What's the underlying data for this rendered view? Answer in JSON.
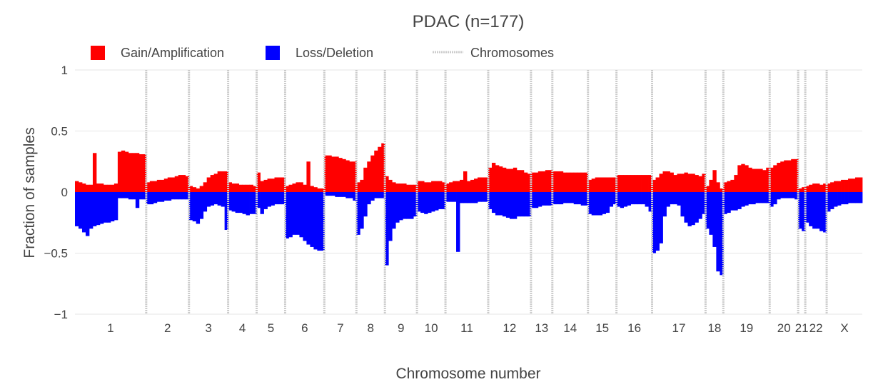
{
  "chart_data": {
    "type": "bar",
    "title": "PDAC (n=177)",
    "xlabel": "Chromosome number",
    "ylabel": "Fraction of samples",
    "ylim": [
      -1,
      1
    ],
    "y_ticks": [
      {
        "value": 1,
        "label": "1"
      },
      {
        "value": 0.5,
        "label": "0.5"
      },
      {
        "value": 0,
        "label": "0"
      },
      {
        "value": -0.5,
        "label": "−0.5"
      },
      {
        "value": -1,
        "label": "−1"
      }
    ],
    "grid": true,
    "legend": "top",
    "colors": {
      "gain": "#ff0000",
      "loss": "#0000ff",
      "chromosomes": "#cccccc"
    },
    "legend_entries": [
      {
        "key": "gain",
        "label": "Gain/Amplification"
      },
      {
        "key": "loss",
        "label": "Loss/Deletion"
      },
      {
        "key": "chromosomes",
        "label": "Chromosomes"
      }
    ],
    "chromosomes": [
      {
        "label": "1",
        "gain": [
          0.09,
          0.08,
          0.07,
          0.06,
          0.06,
          0.32,
          0.07,
          0.07,
          0.06,
          0.06,
          0.06,
          0.07,
          0.33,
          0.34,
          0.33,
          0.32,
          0.32,
          0.32,
          0.31,
          0.31
        ],
        "loss": [
          -0.28,
          -0.3,
          -0.33,
          -0.36,
          -0.3,
          -0.28,
          -0.27,
          -0.26,
          -0.25,
          -0.25,
          -0.24,
          -0.23,
          -0.05,
          -0.05,
          -0.05,
          -0.06,
          -0.06,
          -0.13,
          -0.06,
          -0.06
        ]
      },
      {
        "label": "2",
        "gain": [
          0.08,
          0.09,
          0.09,
          0.1,
          0.1,
          0.11,
          0.12,
          0.12,
          0.13,
          0.14,
          0.14,
          0.13
        ],
        "loss": [
          -0.1,
          -0.1,
          -0.09,
          -0.08,
          -0.08,
          -0.07,
          -0.07,
          -0.06,
          -0.06,
          -0.06,
          -0.06,
          -0.06
        ]
      },
      {
        "label": "3",
        "gain": [
          0.05,
          0.04,
          0.03,
          0.05,
          0.08,
          0.12,
          0.14,
          0.15,
          0.17,
          0.17,
          0.17
        ],
        "loss": [
          -0.23,
          -0.24,
          -0.26,
          -0.22,
          -0.16,
          -0.12,
          -0.11,
          -0.1,
          -0.11,
          -0.12,
          -0.31
        ]
      },
      {
        "label": "4",
        "gain": [
          0.08,
          0.07,
          0.07,
          0.06,
          0.06,
          0.06,
          0.06,
          0.05
        ],
        "loss": [
          -0.15,
          -0.16,
          -0.17,
          -0.17,
          -0.18,
          -0.19,
          -0.18,
          -0.18
        ]
      },
      {
        "label": "5",
        "gain": [
          0.16,
          0.09,
          0.1,
          0.11,
          0.11,
          0.12,
          0.12,
          0.12
        ],
        "loss": [
          -0.13,
          -0.18,
          -0.14,
          -0.12,
          -0.11,
          -0.1,
          -0.1,
          -0.1
        ]
      },
      {
        "label": "6",
        "gain": [
          0.05,
          0.06,
          0.07,
          0.08,
          0.08,
          0.06,
          0.25,
          0.05,
          0.04,
          0.03,
          0.03
        ],
        "loss": [
          -0.38,
          -0.37,
          -0.35,
          -0.35,
          -0.37,
          -0.4,
          -0.43,
          -0.45,
          -0.47,
          -0.48,
          -0.48
        ]
      },
      {
        "label": "7",
        "gain": [
          0.3,
          0.3,
          0.29,
          0.29,
          0.28,
          0.27,
          0.26,
          0.25,
          0.25
        ],
        "loss": [
          -0.03,
          -0.03,
          -0.03,
          -0.04,
          -0.04,
          -0.04,
          -0.05,
          -0.05,
          -0.07
        ]
      },
      {
        "label": "8",
        "gain": [
          0.08,
          0.1,
          0.2,
          0.25,
          0.3,
          0.34,
          0.37,
          0.4
        ],
        "loss": [
          -0.35,
          -0.3,
          -0.2,
          -0.1,
          -0.07,
          -0.05,
          -0.05,
          -0.05
        ]
      },
      {
        "label": "9",
        "gain": [
          0.13,
          0.1,
          0.08,
          0.07,
          0.07,
          0.07,
          0.06,
          0.06,
          0.06
        ],
        "loss": [
          -0.6,
          -0.4,
          -0.3,
          -0.25,
          -0.23,
          -0.22,
          -0.22,
          -0.22,
          -0.2
        ]
      },
      {
        "label": "10",
        "gain": [
          0.09,
          0.09,
          0.08,
          0.08,
          0.09,
          0.09,
          0.09,
          0.08
        ],
        "loss": [
          -0.16,
          -0.17,
          -0.18,
          -0.17,
          -0.16,
          -0.15,
          -0.14,
          -0.14
        ]
      },
      {
        "label": "11",
        "gain": [
          0.07,
          0.08,
          0.09,
          0.09,
          0.1,
          0.17,
          0.09,
          0.1,
          0.11,
          0.12,
          0.12,
          0.12
        ],
        "loss": [
          -0.08,
          -0.08,
          -0.08,
          -0.49,
          -0.09,
          -0.09,
          -0.09,
          -0.09,
          -0.09,
          -0.08,
          -0.08,
          -0.08
        ]
      },
      {
        "label": "12",
        "gain": [
          0.2,
          0.24,
          0.22,
          0.21,
          0.2,
          0.19,
          0.19,
          0.2,
          0.18,
          0.18,
          0.16,
          0.15
        ],
        "loss": [
          -0.14,
          -0.17,
          -0.19,
          -0.19,
          -0.2,
          -0.21,
          -0.22,
          -0.22,
          -0.2,
          -0.2,
          -0.2,
          -0.2
        ]
      },
      {
        "label": "13",
        "gain": [
          0.16,
          0.16,
          0.17,
          0.17,
          0.18,
          0.18
        ],
        "loss": [
          -0.13,
          -0.13,
          -0.12,
          -0.11,
          -0.11,
          -0.11
        ]
      },
      {
        "label": "14",
        "gain": [
          0.17,
          0.17,
          0.17,
          0.16,
          0.16,
          0.16,
          0.16,
          0.16,
          0.16,
          0.16
        ],
        "loss": [
          -0.1,
          -0.1,
          -0.1,
          -0.09,
          -0.09,
          -0.09,
          -0.1,
          -0.1,
          -0.11,
          -0.11
        ]
      },
      {
        "label": "15",
        "gain": [
          0.1,
          0.11,
          0.12,
          0.12,
          0.12,
          0.12,
          0.12,
          0.12
        ],
        "loss": [
          -0.18,
          -0.19,
          -0.19,
          -0.19,
          -0.18,
          -0.17,
          -0.12,
          -0.1
        ]
      },
      {
        "label": "16",
        "gain": [
          0.14,
          0.14,
          0.14,
          0.14,
          0.14,
          0.14,
          0.14,
          0.14,
          0.14,
          0.14
        ],
        "loss": [
          -0.12,
          -0.13,
          -0.12,
          -0.11,
          -0.1,
          -0.1,
          -0.1,
          -0.1,
          -0.12,
          -0.16
        ]
      },
      {
        "label": "17",
        "gain": [
          0.1,
          0.12,
          0.15,
          0.17,
          0.17,
          0.16,
          0.14,
          0.15,
          0.15,
          0.16,
          0.15,
          0.15,
          0.14,
          0.13,
          0.15
        ],
        "loss": [
          -0.5,
          -0.48,
          -0.42,
          -0.2,
          -0.12,
          -0.1,
          -0.1,
          -0.11,
          -0.2,
          -0.25,
          -0.28,
          -0.27,
          -0.25,
          -0.22,
          -0.18
        ]
      },
      {
        "label": "18",
        "gain": [
          0.05,
          0.1,
          0.18,
          0.08,
          0.03
        ],
        "loss": [
          -0.3,
          -0.35,
          -0.45,
          -0.65,
          -0.68
        ]
      },
      {
        "label": "19",
        "gain": [
          0.08,
          0.09,
          0.1,
          0.14,
          0.22,
          0.23,
          0.22,
          0.2,
          0.19,
          0.19,
          0.19,
          0.18,
          0.2
        ],
        "loss": [
          -0.18,
          -0.17,
          -0.15,
          -0.15,
          -0.14,
          -0.12,
          -0.11,
          -0.1,
          -0.1,
          -0.09,
          -0.09,
          -0.09,
          -0.09
        ]
      },
      {
        "label": "20",
        "gain": [
          0.2,
          0.22,
          0.24,
          0.25,
          0.26,
          0.26,
          0.27,
          0.27
        ],
        "loss": [
          -0.12,
          -0.1,
          -0.06,
          -0.05,
          -0.05,
          -0.05,
          -0.05,
          -0.06
        ]
      },
      {
        "label": "21",
        "gain": [
          0.03,
          0.04
        ],
        "loss": [
          -0.3,
          -0.32
        ]
      },
      {
        "label": "22",
        "gain": [
          0.05,
          0.06,
          0.07,
          0.07,
          0.06,
          0.07
        ],
        "loss": [
          -0.25,
          -0.28,
          -0.3,
          -0.3,
          -0.32,
          -0.33
        ]
      },
      {
        "label": "X",
        "gain": [
          0.07,
          0.08,
          0.09,
          0.09,
          0.1,
          0.1,
          0.11,
          0.11,
          0.12,
          0.12
        ],
        "loss": [
          -0.16,
          -0.14,
          -0.12,
          -0.11,
          -0.1,
          -0.1,
          -0.09,
          -0.09,
          -0.09,
          -0.09
        ]
      }
    ]
  }
}
